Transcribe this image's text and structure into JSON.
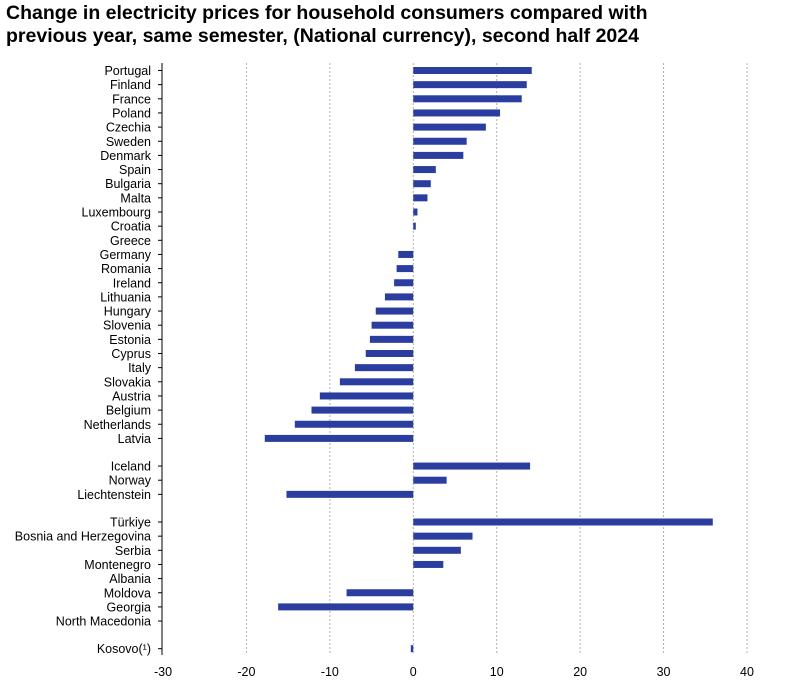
{
  "colors": {
    "bar": "#2b3ea0",
    "grid": "#b0b0b0",
    "axis": "#000000"
  },
  "chart_data": {
    "type": "bar",
    "orientation": "horizontal",
    "title_lines": [
      "Change in electricity prices for household consumers compared with",
      "previous year, same semester, (National currency), second half 2024"
    ],
    "xlabel": "",
    "ylabel": "",
    "xlim": [
      -30,
      40
    ],
    "xticks": [
      -30,
      -20,
      -10,
      0,
      10,
      20,
      30,
      40
    ],
    "grid": "vertical dotted",
    "legend": "none",
    "groups": [
      {
        "categories": [
          "Portugal",
          "Finland",
          "France",
          "Poland",
          "Czechia",
          "Sweden",
          "Denmark",
          "Spain",
          "Bulgaria",
          "Malta",
          "Luxembourg",
          "Croatia",
          "Greece",
          "Germany",
          "Romania",
          "Ireland",
          "Lithuania",
          "Hungary",
          "Slovenia",
          "Estonia",
          "Cyprus",
          "Italy",
          "Slovakia",
          "Austria",
          "Belgium",
          "Netherlands",
          "Latvia"
        ],
        "values": [
          14.2,
          13.6,
          13.0,
          10.4,
          8.7,
          6.4,
          6.0,
          2.7,
          2.1,
          1.7,
          0.5,
          0.3,
          0.0,
          -1.8,
          -2.0,
          -2.3,
          -3.4,
          -4.5,
          -5.0,
          -5.2,
          -5.7,
          -7.0,
          -8.8,
          -11.2,
          -12.2,
          -14.2,
          -17.8
        ]
      },
      {
        "categories": [
          "Iceland",
          "Norway",
          "Liechtenstein"
        ],
        "values": [
          14.0,
          4.0,
          -15.2
        ]
      },
      {
        "categories": [
          "Türkiye",
          "Bosnia and Herzegovina",
          "Serbia",
          "Montenegro",
          "Albania",
          "Moldova",
          "Georgia",
          "North Macedonia"
        ],
        "values": [
          35.9,
          7.1,
          5.7,
          3.6,
          0.0,
          -8.0,
          -16.2,
          0.0
        ]
      },
      {
        "categories": [
          "Kosovo(¹)"
        ],
        "values": [
          -0.3
        ]
      }
    ]
  }
}
